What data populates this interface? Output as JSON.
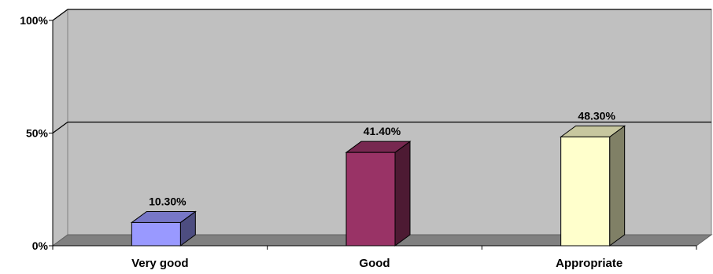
{
  "chart_data": {
    "type": "bar",
    "categories": [
      "Very good",
      "Good",
      "Appropriate"
    ],
    "values": [
      10.3,
      41.4,
      48.3
    ],
    "data_labels": [
      "10.30%",
      "41.40%",
      "48.30%"
    ],
    "y_ticks": [
      {
        "value": 0,
        "label": "0%"
      },
      {
        "value": 50,
        "label": "50%"
      },
      {
        "value": 100,
        "label": "100%"
      }
    ],
    "ylim": [
      0,
      100
    ],
    "title": "",
    "xlabel": "",
    "ylabel": "",
    "grid": true,
    "three_d": true,
    "colors": {
      "bars": [
        "#9999ff",
        "#993366",
        "#ffffcc"
      ],
      "wall": "#c0c0c0",
      "floor": "#808080",
      "gridline": "#000000"
    }
  }
}
